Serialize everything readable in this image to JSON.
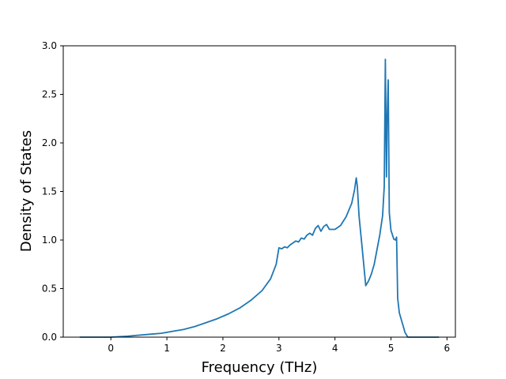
{
  "chart_data": {
    "type": "line",
    "title": "",
    "xlabel": "Frequency (THz)",
    "ylabel": "Density of States",
    "xlim": [
      -0.85,
      6.15
    ],
    "ylim": [
      0,
      3.0
    ],
    "xticks": [
      0,
      1,
      2,
      3,
      4,
      5,
      6
    ],
    "yticks": [
      0.0,
      0.5,
      1.0,
      1.5,
      2.0,
      2.5,
      3.0
    ],
    "xtick_labels": [
      "0",
      "1",
      "2",
      "3",
      "4",
      "5",
      "6"
    ],
    "ytick_labels": [
      "0.0",
      "0.5",
      "1.0",
      "1.5",
      "2.0",
      "2.5",
      "3.0"
    ],
    "grid": false,
    "series": [
      {
        "color": "#1f77b4",
        "x": [
          -0.55,
          0.0,
          0.3,
          0.5,
          0.7,
          0.9,
          1.1,
          1.3,
          1.5,
          1.7,
          1.9,
          2.1,
          2.3,
          2.5,
          2.7,
          2.85,
          2.95,
          3.0,
          3.05,
          3.1,
          3.15,
          3.2,
          3.25,
          3.3,
          3.35,
          3.4,
          3.45,
          3.5,
          3.55,
          3.6,
          3.65,
          3.7,
          3.75,
          3.8,
          3.85,
          3.9,
          4.0,
          4.1,
          4.2,
          4.3,
          4.35,
          4.38,
          4.4,
          4.43,
          4.48,
          4.55,
          4.6,
          4.65,
          4.7,
          4.75,
          4.8,
          4.85,
          4.88,
          4.9,
          4.92,
          4.93,
          4.95,
          4.97,
          5.0,
          5.05,
          5.08,
          5.1,
          5.12,
          5.15,
          5.2,
          5.25,
          5.3,
          5.35,
          5.85
        ],
        "y": [
          0.0,
          0.0,
          0.01,
          0.02,
          0.03,
          0.04,
          0.06,
          0.08,
          0.11,
          0.15,
          0.19,
          0.24,
          0.3,
          0.38,
          0.48,
          0.6,
          0.75,
          0.92,
          0.91,
          0.93,
          0.92,
          0.95,
          0.97,
          0.99,
          0.98,
          1.02,
          1.01,
          1.05,
          1.07,
          1.05,
          1.12,
          1.15,
          1.09,
          1.14,
          1.16,
          1.11,
          1.11,
          1.15,
          1.24,
          1.38,
          1.52,
          1.64,
          1.55,
          1.25,
          0.95,
          0.53,
          0.58,
          0.65,
          0.75,
          0.9,
          1.05,
          1.25,
          1.55,
          2.86,
          1.65,
          2.2,
          2.65,
          1.28,
          1.1,
          1.01,
          1.0,
          1.03,
          0.4,
          0.25,
          0.15,
          0.05,
          0.0,
          0.0,
          0.0
        ]
      }
    ]
  }
}
